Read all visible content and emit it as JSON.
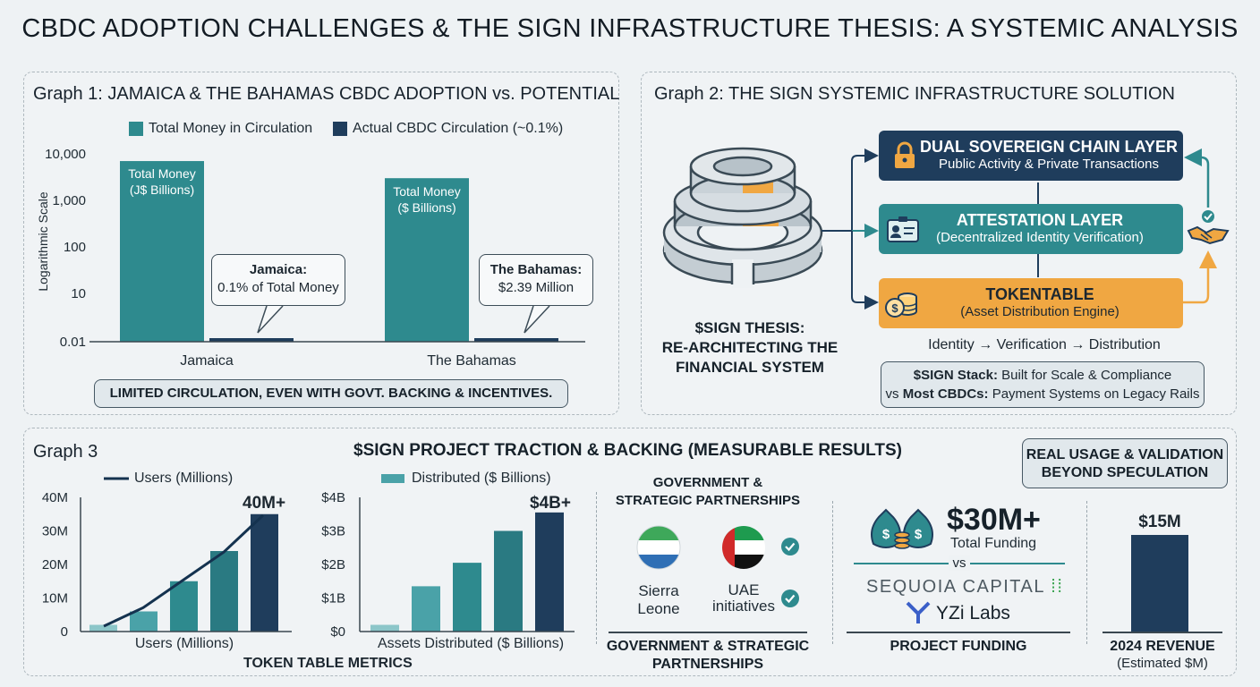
{
  "title": "CBDC ADOPTION CHALLENGES & THE SIGN INFRASTRUCTURE THESIS: A SYSTEMIC ANALYSIS",
  "graph1": {
    "title": "Graph 1: JAMAICA & THE BAHAMAS CBDC ADOPTION vs. POTENTIAL",
    "legend_total": "Total Money in Circulation",
    "legend_actual": "Actual CBDC Circulation (~0.1%)",
    "ylabel": "Logarithmic Scale",
    "bar_label_jamaica": "Total Money\n(J$ Billions)",
    "bar_label_bahamas": "Total Money\n($ Billions)",
    "callout_jamaica_title": "Jamaica:",
    "callout_jamaica_body": "0.1% of Total Money",
    "callout_bahamas_title": "The Bahamas:",
    "callout_bahamas_body": "$2.39 Million",
    "banner": "LIMITED CIRCULATION, EVEN WITH GOVT. BACKING & INCENTIVES."
  },
  "graph2": {
    "title": "Graph 2: THE SIGN SYSTEMIC INFRASTRUCTURE SOLUTION",
    "thesis_line1": "$SIGN THESIS:",
    "thesis_line2": "RE-ARCHITECTING THE",
    "thesis_line3": "FINANCIAL SYSTEM",
    "layer1_title": "DUAL SOVEREIGN CHAIN LAYER",
    "layer1_sub": "Public Activity & Private Transactions",
    "layer2_title": "ATTESTATION LAYER",
    "layer2_sub": "(Decentralized Identity Verification)",
    "layer3_title": "TOKENTABLE",
    "layer3_sub": "(Asset Distribution Engine)",
    "flow": "Identity → Verification → Distribution",
    "stack_bold": "$SIGN Stack:",
    "stack_rest": " Built for Scale & Compliance",
    "vs_prefix": "vs ",
    "vs_bold": "Most CBDCs:",
    "vs_rest": " Payment Systems on Legacy Rails",
    "colors": {
      "navy": "#1f3d5c",
      "teal": "#2e8a8e",
      "orange": "#f0a742"
    }
  },
  "graph3": {
    "label": "Graph 3",
    "title": "$SIGN PROJECT TRACTION & BACKING (MEASURABLE RESULTS)",
    "real_usage_line1": "REAL USAGE & VALIDATION",
    "real_usage_line2": "BEYOND SPECULATION",
    "users_legend": "Users (Millions)",
    "users_xlabel": "Users (Millions)",
    "users_callout": "40M+",
    "dist_legend": "Distributed ($ Billions)",
    "dist_xlabel": "Assets Distributed ($ Billions)",
    "dist_callout": "$4B+",
    "token_metrics": "TOKEN TABLE METRICS",
    "gov_title_line1": "GOVERNMENT &",
    "gov_title_line2": "STRATEGIC PARTNERSHIPS",
    "sierra_line1": "Sierra",
    "sierra_line2": "Leone",
    "uae_line1": "UAE",
    "uae_line2": "initiatives",
    "gov_footer_line1": "GOVERNMENT & STRATEGIC",
    "gov_footer_line2": "PARTNERSHIPS",
    "funding_amount": "$30M+",
    "funding_label": "Total Funding",
    "funding_vs": "vs",
    "sequoia": "SEQUOIA CAPITAL",
    "yzi": "YZi Labs",
    "funding_footer": "PROJECT FUNDING",
    "revenue_value": "$15M",
    "revenue_footer": "2024 REVENUE",
    "revenue_sub": "(Estimated $M)"
  },
  "chart_data": [
    {
      "type": "bar",
      "title": "Graph 1: JAMAICA & THE BAHAMAS CBDC ADOPTION vs. POTENTIAL",
      "ylabel": "Logarithmic Scale",
      "yscale": "log",
      "yticks": [
        "0.01",
        "10",
        "100",
        "1,000",
        "10,000"
      ],
      "categories": [
        "Jamaica",
        "The Bahamas"
      ],
      "series": [
        {
          "name": "Total Money in Circulation",
          "values": [
            7000,
            3000
          ]
        },
        {
          "name": "Actual CBDC Circulation (~0.1%)",
          "values": [
            0.01,
            0.01
          ]
        }
      ]
    },
    {
      "type": "bar",
      "xlabel": "Users (Millions)",
      "yticks": [
        "0",
        "10M",
        "20M",
        "30M",
        "40M"
      ],
      "ylim": [
        0,
        40
      ],
      "values": [
        2,
        6,
        15,
        24,
        35
      ],
      "series": [
        {
          "name": "Users (Millions)",
          "values": [
            2,
            6,
            15,
            24,
            35
          ]
        }
      ]
    },
    {
      "type": "bar",
      "xlabel": "Assets Distributed ($ Billions)",
      "yticks": [
        "$0",
        "$1B",
        "$2B",
        "$3B",
        "$4B"
      ],
      "ylim": [
        0,
        4
      ],
      "values": [
        0.2,
        1.35,
        2.05,
        3.0,
        3.55
      ],
      "series": [
        {
          "name": "Distributed ($ Billions)",
          "values": [
            0.2,
            1.35,
            2.05,
            3.0,
            3.55
          ]
        }
      ]
    },
    {
      "type": "bar",
      "xlabel": "2024 REVENUE",
      "categories": [
        "2024"
      ],
      "values": [
        15
      ],
      "series": [
        {
          "name": "2024 REVENUE",
          "values": [
            15
          ]
        }
      ]
    }
  ]
}
